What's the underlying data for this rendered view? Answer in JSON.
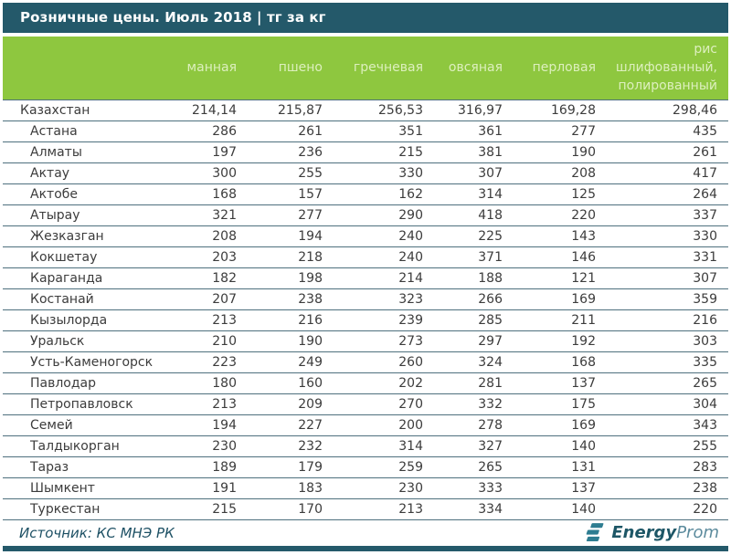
{
  "title": "Розничные цены. Июль 2018 | тг за кг",
  "source": "Источник: КС МНЭ РК",
  "logo": {
    "bold_part": "Energy",
    "light_part": "Prom"
  },
  "colors": {
    "teal": "#24596a",
    "green": "#8ec73f",
    "header_text": "#ddefbe",
    "row_line": "#4e707e",
    "body_text": "#3c3c3c",
    "source_text": "#1d5064",
    "logo_icon": "#2e7d91"
  },
  "chart_data": {
    "type": "table",
    "title": "Розничные цены. Июль 2018",
    "unit": "тг за кг",
    "columns": [
      "манная",
      "пшено",
      "гречневая",
      "овсяная",
      "перловая",
      "рис шлифованный, полированный"
    ],
    "rows": [
      {
        "region": "Казахстан",
        "is_total": true,
        "values": [
          "214,14",
          "215,87",
          "256,53",
          "316,97",
          "169,28",
          "298,46"
        ]
      },
      {
        "region": "Астана",
        "is_total": false,
        "values": [
          "286",
          "261",
          "351",
          "361",
          "277",
          "435"
        ]
      },
      {
        "region": "Алматы",
        "is_total": false,
        "values": [
          "197",
          "236",
          "215",
          "381",
          "190",
          "261"
        ]
      },
      {
        "region": "Актау",
        "is_total": false,
        "values": [
          "300",
          "255",
          "330",
          "307",
          "208",
          "417"
        ]
      },
      {
        "region": "Актобе",
        "is_total": false,
        "values": [
          "168",
          "157",
          "162",
          "314",
          "125",
          "264"
        ]
      },
      {
        "region": "Атырау",
        "is_total": false,
        "values": [
          "321",
          "277",
          "290",
          "418",
          "220",
          "337"
        ]
      },
      {
        "region": "Жезказган",
        "is_total": false,
        "values": [
          "208",
          "194",
          "240",
          "225",
          "143",
          "330"
        ]
      },
      {
        "region": "Кокшетау",
        "is_total": false,
        "values": [
          "203",
          "218",
          "240",
          "371",
          "146",
          "331"
        ]
      },
      {
        "region": "Караганда",
        "is_total": false,
        "values": [
          "182",
          "198",
          "214",
          "188",
          "121",
          "307"
        ]
      },
      {
        "region": "Костанай",
        "is_total": false,
        "values": [
          "207",
          "238",
          "323",
          "266",
          "169",
          "359"
        ]
      },
      {
        "region": "Кызылорда",
        "is_total": false,
        "values": [
          "213",
          "216",
          "239",
          "285",
          "211",
          "216"
        ]
      },
      {
        "region": "Уральск",
        "is_total": false,
        "values": [
          "210",
          "190",
          "273",
          "297",
          "192",
          "303"
        ]
      },
      {
        "region": "Усть-Каменогорск",
        "is_total": false,
        "values": [
          "223",
          "249",
          "260",
          "324",
          "168",
          "335"
        ]
      },
      {
        "region": "Павлодар",
        "is_total": false,
        "values": [
          "180",
          "160",
          "202",
          "281",
          "137",
          "265"
        ]
      },
      {
        "region": "Петропавловск",
        "is_total": false,
        "values": [
          "213",
          "209",
          "270",
          "332",
          "175",
          "304"
        ]
      },
      {
        "region": "Семей",
        "is_total": false,
        "values": [
          "194",
          "227",
          "200",
          "278",
          "169",
          "343"
        ]
      },
      {
        "region": "Талдыкорган",
        "is_total": false,
        "values": [
          "230",
          "232",
          "314",
          "327",
          "140",
          "255"
        ]
      },
      {
        "region": "Тараз",
        "is_total": false,
        "values": [
          "189",
          "179",
          "259",
          "265",
          "131",
          "283"
        ]
      },
      {
        "region": "Шымкент",
        "is_total": false,
        "values": [
          "191",
          "183",
          "230",
          "333",
          "137",
          "238"
        ]
      },
      {
        "region": "Туркестан",
        "is_total": false,
        "values": [
          "215",
          "170",
          "213",
          "334",
          "140",
          "220"
        ]
      }
    ]
  }
}
